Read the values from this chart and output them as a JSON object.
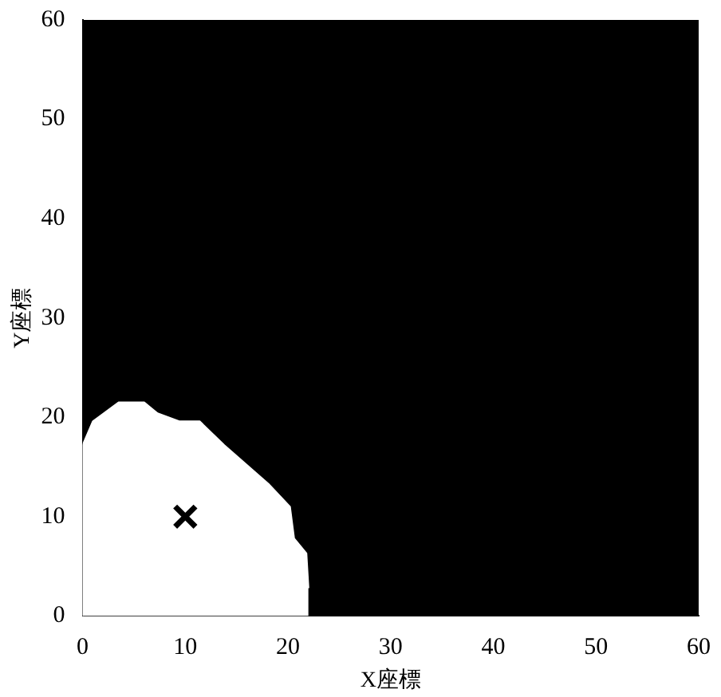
{
  "chart_data": {
    "type": "area",
    "xlabel": "X座標",
    "ylabel": "Y座標",
    "xlim": [
      0,
      60
    ],
    "ylim": [
      0,
      60
    ],
    "xticks": [
      0,
      10,
      20,
      30,
      40,
      50,
      60
    ],
    "yticks": [
      0,
      10,
      20,
      30,
      40,
      50,
      60
    ],
    "grid": false,
    "legend": false,
    "series": [
      {
        "color": "#ffffff",
        "x": [
          0,
          0,
          1,
          3.5,
          6,
          7.3,
          9.4,
          11.4,
          13.8,
          18.1,
          20.2,
          20.6,
          21.8,
          22
        ],
        "values": [
          0,
          17.2,
          19.6,
          21.5,
          21.5,
          20.4,
          19.6,
          19.6,
          17.2,
          13.3,
          11,
          7.8,
          6.3,
          2.8
        ]
      },
      {
        "type": "scatter",
        "color": "#000000",
        "marker": "cross",
        "x": [
          10
        ],
        "values": [
          10
        ]
      }
    ]
  }
}
